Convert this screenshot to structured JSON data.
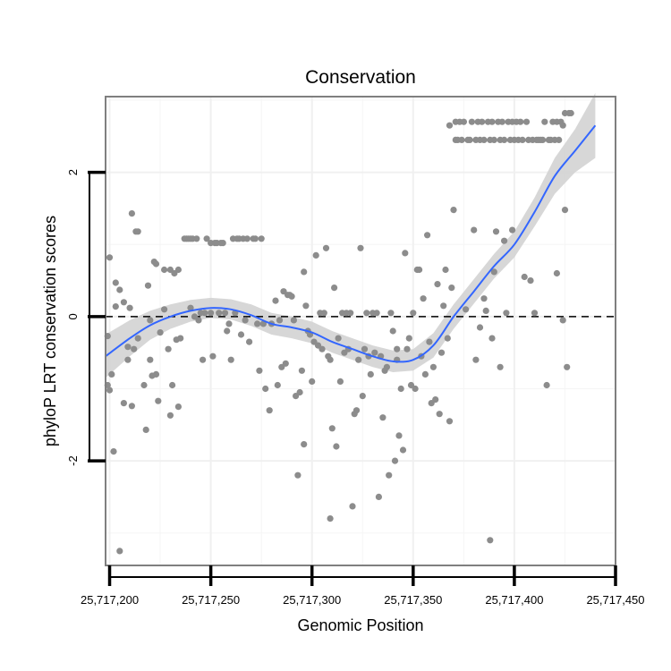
{
  "chart_data": {
    "type": "scatter",
    "title": "Conservation",
    "xlabel": "Genomic Position",
    "ylabel": "phyloP LRT conservation scores",
    "xlim": [
      25717198,
      25717450
    ],
    "ylim": [
      -3.45,
      3.05
    ],
    "x_ticks": [
      {
        "value": 25717200,
        "label": "25,717,200"
      },
      {
        "value": 25717250,
        "label": "25,717,250"
      },
      {
        "value": 25717300,
        "label": "25,717,300"
      },
      {
        "value": 25717350,
        "label": "25,717,350"
      },
      {
        "value": 25717400,
        "label": "25,717,400"
      },
      {
        "value": 25717450,
        "label": "25,717,450"
      }
    ],
    "y_ticks": [
      {
        "value": -2,
        "label": "-2"
      },
      {
        "value": 0,
        "label": "0"
      },
      {
        "value": 2,
        "label": "2"
      }
    ],
    "reference_line": {
      "y": 0,
      "style": "dashed"
    },
    "grid": true,
    "point_color": "#8c8c8c",
    "line_color": "#3366ff",
    "band_color": "#d3d3d3",
    "points": [
      [
        25717199,
        -0.27
      ],
      [
        25717199,
        -0.95
      ],
      [
        25717200,
        0.82
      ],
      [
        25717200,
        -1.02
      ],
      [
        25717201,
        -0.8
      ],
      [
        25717202,
        -1.87
      ],
      [
        25717203,
        0.14
      ],
      [
        25717203,
        0.47
      ],
      [
        25717205,
        -3.25
      ],
      [
        25717205,
        0.37
      ],
      [
        25717207,
        0.2
      ],
      [
        25717207,
        -1.2
      ],
      [
        25717209,
        -0.6
      ],
      [
        25717209,
        -0.42
      ],
      [
        25717210,
        0.12
      ],
      [
        25717211,
        1.43
      ],
      [
        25717211,
        -1.24
      ],
      [
        25717212,
        -0.45
      ],
      [
        25717213,
        1.18
      ],
      [
        25717214,
        -0.3
      ],
      [
        25717214,
        1.18
      ],
      [
        25717217,
        -0.95
      ],
      [
        25717218,
        -1.57
      ],
      [
        25717219,
        0.43
      ],
      [
        25717220,
        -0.6
      ],
      [
        25717220,
        -0.05
      ],
      [
        25717221,
        -0.82
      ],
      [
        25717222,
        0.76
      ],
      [
        25717223,
        0.73
      ],
      [
        25717223,
        -0.8
      ],
      [
        25717224,
        -1.17
      ],
      [
        25717225,
        -0.22
      ],
      [
        25717227,
        0.65
      ],
      [
        25717227,
        0.1
      ],
      [
        25717229,
        -0.45
      ],
      [
        25717230,
        -1.37
      ],
      [
        25717230,
        0.65
      ],
      [
        25717231,
        -0.95
      ],
      [
        25717232,
        0.6
      ],
      [
        25717233,
        -0.32
      ],
      [
        25717234,
        -1.25
      ],
      [
        25717234,
        0.65
      ],
      [
        25717235,
        -0.3
      ],
      [
        25717237,
        1.08
      ],
      [
        25717238,
        1.08
      ],
      [
        25717239,
        1.08
      ],
      [
        25717240,
        1.08
      ],
      [
        25717240,
        0.12
      ],
      [
        25717241,
        1.08
      ],
      [
        25717242,
        0.0
      ],
      [
        25717243,
        1.08
      ],
      [
        25717244,
        -0.05
      ],
      [
        25717245,
        0.05
      ],
      [
        25717246,
        -0.6
      ],
      [
        25717247,
        0.05
      ],
      [
        25717248,
        1.08
      ],
      [
        25717250,
        0.05
      ],
      [
        25717250,
        1.02
      ],
      [
        25717251,
        -0.55
      ],
      [
        25717252,
        1.02
      ],
      [
        25717253,
        1.02
      ],
      [
        25717254,
        0.05
      ],
      [
        25717255,
        1.02
      ],
      [
        25717256,
        1.02
      ],
      [
        25717257,
        0.05
      ],
      [
        25717258,
        -0.2
      ],
      [
        25717259,
        -0.1
      ],
      [
        25717260,
        -0.6
      ],
      [
        25717261,
        1.08
      ],
      [
        25717262,
        0.05
      ],
      [
        25717263,
        1.08
      ],
      [
        25717264,
        1.08
      ],
      [
        25717265,
        -0.25
      ],
      [
        25717266,
        1.08
      ],
      [
        25717267,
        -0.05
      ],
      [
        25717268,
        1.08
      ],
      [
        25717269,
        -0.35
      ],
      [
        25717271,
        1.08
      ],
      [
        25717272,
        1.08
      ],
      [
        25717273,
        -0.1
      ],
      [
        25717274,
        -0.75
      ],
      [
        25717275,
        1.08
      ],
      [
        25717276,
        -0.1
      ],
      [
        25717277,
        -1.0
      ],
      [
        25717279,
        -1.3
      ],
      [
        25717280,
        -0.1
      ],
      [
        25717282,
        0.22
      ],
      [
        25717283,
        -0.95
      ],
      [
        25717284,
        -0.05
      ],
      [
        25717285,
        -0.7
      ],
      [
        25717286,
        0.35
      ],
      [
        25717287,
        -0.65
      ],
      [
        25717288,
        0.3
      ],
      [
        25717289,
        0.3
      ],
      [
        25717290,
        0.28
      ],
      [
        25717291,
        -0.05
      ],
      [
        25717292,
        -1.1
      ],
      [
        25717293,
        -2.2
      ],
      [
        25717294,
        -1.05
      ],
      [
        25717295,
        -0.75
      ],
      [
        25717296,
        0.62
      ],
      [
        25717296,
        -1.77
      ],
      [
        25717297,
        0.15
      ],
      [
        25717298,
        -0.2
      ],
      [
        25717299,
        -0.25
      ],
      [
        25717300,
        -0.9
      ],
      [
        25717301,
        -0.35
      ],
      [
        25717302,
        0.85
      ],
      [
        25717303,
        -0.4
      ],
      [
        25717304,
        0.05
      ],
      [
        25717305,
        -0.45
      ],
      [
        25717306,
        0.05
      ],
      [
        25717307,
        0.95
      ],
      [
        25717308,
        -0.55
      ],
      [
        25717309,
        -2.8
      ],
      [
        25717309,
        -0.6
      ],
      [
        25717310,
        -1.55
      ],
      [
        25717311,
        0.4
      ],
      [
        25717312,
        -1.8
      ],
      [
        25717313,
        -0.3
      ],
      [
        25717314,
        -0.9
      ],
      [
        25717315,
        0.05
      ],
      [
        25717316,
        -0.5
      ],
      [
        25717317,
        0.05
      ],
      [
        25717318,
        -0.45
      ],
      [
        25717319,
        0.05
      ],
      [
        25717320,
        -2.63
      ],
      [
        25717321,
        -1.35
      ],
      [
        25717322,
        -1.3
      ],
      [
        25717323,
        -0.6
      ],
      [
        25717324,
        0.95
      ],
      [
        25717325,
        -1.1
      ],
      [
        25717326,
        -0.45
      ],
      [
        25717327,
        0.05
      ],
      [
        25717328,
        -0.55
      ],
      [
        25717329,
        -0.8
      ],
      [
        25717330,
        0.05
      ],
      [
        25717331,
        -0.5
      ],
      [
        25717332,
        0.05
      ],
      [
        25717333,
        -2.5
      ],
      [
        25717334,
        -0.55
      ],
      [
        25717335,
        -1.4
      ],
      [
        25717336,
        -0.75
      ],
      [
        25717337,
        -0.7
      ],
      [
        25717338,
        -2.2
      ],
      [
        25717339,
        0.05
      ],
      [
        25717340,
        -0.2
      ],
      [
        25717341,
        -2.0
      ],
      [
        25717342,
        -0.45
      ],
      [
        25717342,
        -0.6
      ],
      [
        25717343,
        -1.65
      ],
      [
        25717344,
        -1.0
      ],
      [
        25717345,
        -1.85
      ],
      [
        25717346,
        0.88
      ],
      [
        25717347,
        -0.45
      ],
      [
        25717348,
        -0.3
      ],
      [
        25717349,
        -0.95
      ],
      [
        25717350,
        0.05
      ],
      [
        25717351,
        -1.0
      ],
      [
        25717352,
        0.65
      ],
      [
        25717353,
        0.65
      ],
      [
        25717354,
        -0.55
      ],
      [
        25717355,
        0.25
      ],
      [
        25717356,
        -0.8
      ],
      [
        25717357,
        1.13
      ],
      [
        25717358,
        -0.35
      ],
      [
        25717359,
        -1.2
      ],
      [
        25717360,
        -0.7
      ],
      [
        25717361,
        -1.15
      ],
      [
        25717362,
        0.45
      ],
      [
        25717363,
        -1.35
      ],
      [
        25717364,
        -0.5
      ],
      [
        25717365,
        0.15
      ],
      [
        25717366,
        0.65
      ],
      [
        25717367,
        -0.3
      ],
      [
        25717368,
        2.65
      ],
      [
        25717368,
        -1.45
      ],
      [
        25717369,
        0.4
      ],
      [
        25717370,
        1.48
      ],
      [
        25717371,
        2.45
      ],
      [
        25717371,
        2.7
      ],
      [
        25717372,
        2.45
      ],
      [
        25717373,
        2.7
      ],
      [
        25717374,
        2.45
      ],
      [
        25717375,
        2.7
      ],
      [
        25717376,
        0.1
      ],
      [
        25717377,
        2.45
      ],
      [
        25717378,
        2.45
      ],
      [
        25717379,
        2.7
      ],
      [
        25717380,
        1.2
      ],
      [
        25717381,
        2.45
      ],
      [
        25717382,
        2.7
      ],
      [
        25717383,
        2.45
      ],
      [
        25717384,
        2.7
      ],
      [
        25717385,
        2.45
      ],
      [
        25717386,
        0.08
      ],
      [
        25717387,
        2.7
      ],
      [
        25717388,
        2.45
      ],
      [
        25717389,
        2.7
      ],
      [
        25717390,
        2.45
      ],
      [
        25717391,
        1.18
      ],
      [
        25717392,
        2.7
      ],
      [
        25717393,
        2.45
      ],
      [
        25717394,
        2.7
      ],
      [
        25717395,
        2.45
      ],
      [
        25717396,
        0.05
      ],
      [
        25717397,
        2.7
      ],
      [
        25717398,
        2.45
      ],
      [
        25717399,
        2.7
      ],
      [
        25717400,
        2.45
      ],
      [
        25717401,
        2.7
      ],
      [
        25717402,
        2.45
      ],
      [
        25717403,
        2.7
      ],
      [
        25717404,
        2.45
      ],
      [
        25717405,
        0.55
      ],
      [
        25717406,
        2.7
      ],
      [
        25717407,
        2.45
      ],
      [
        25717408,
        0.5
      ],
      [
        25717409,
        2.45
      ],
      [
        25717410,
        0.05
      ],
      [
        25717411,
        2.45
      ],
      [
        25717412,
        2.45
      ],
      [
        25717413,
        2.45
      ],
      [
        25717414,
        2.45
      ],
      [
        25717415,
        2.7
      ],
      [
        25717416,
        -0.95
      ],
      [
        25717417,
        2.45
      ],
      [
        25717418,
        2.45
      ],
      [
        25717419,
        2.7
      ],
      [
        25717420,
        2.45
      ],
      [
        25717421,
        2.7
      ],
      [
        25717421,
        0.6
      ],
      [
        25717422,
        2.45
      ],
      [
        25717423,
        2.7
      ],
      [
        25717424,
        -0.05
      ],
      [
        25717424,
        2.65
      ],
      [
        25717425,
        1.48
      ],
      [
        25717425,
        2.82
      ],
      [
        25717426,
        -0.7
      ],
      [
        25717427,
        2.82
      ],
      [
        25717428,
        2.82
      ],
      [
        25717388,
        -3.1
      ],
      [
        25717389,
        -0.3
      ],
      [
        25717381,
        -0.6
      ],
      [
        25717383,
        -0.15
      ],
      [
        25717385,
        0.25
      ],
      [
        25717390,
        0.62
      ],
      [
        25717393,
        -0.7
      ],
      [
        25717395,
        1.05
      ],
      [
        25717399,
        1.2
      ]
    ],
    "trend": [
      [
        25717198,
        -0.55
      ],
      [
        25717210,
        -0.3
      ],
      [
        25717220,
        -0.12
      ],
      [
        25717230,
        0.0
      ],
      [
        25717240,
        0.08
      ],
      [
        25717250,
        0.12
      ],
      [
        25717260,
        0.1
      ],
      [
        25717270,
        0.02
      ],
      [
        25717280,
        -0.1
      ],
      [
        25717290,
        -0.15
      ],
      [
        25717300,
        -0.22
      ],
      [
        25717310,
        -0.35
      ],
      [
        25717320,
        -0.45
      ],
      [
        25717330,
        -0.55
      ],
      [
        25717340,
        -0.62
      ],
      [
        25717350,
        -0.6
      ],
      [
        25717360,
        -0.4
      ],
      [
        25717370,
        0.0
      ],
      [
        25717380,
        0.35
      ],
      [
        25717390,
        0.7
      ],
      [
        25717400,
        1.0
      ],
      [
        25717410,
        1.45
      ],
      [
        25717420,
        1.95
      ],
      [
        25717430,
        2.3
      ],
      [
        25717440,
        2.65
      ]
    ],
    "band_halfwidth": [
      0.3,
      0.25,
      0.2,
      0.17,
      0.15,
      0.14,
      0.14,
      0.15,
      0.15,
      0.15,
      0.15,
      0.15,
      0.15,
      0.15,
      0.15,
      0.15,
      0.17,
      0.17,
      0.17,
      0.17,
      0.18,
      0.2,
      0.25,
      0.3,
      0.45
    ]
  }
}
